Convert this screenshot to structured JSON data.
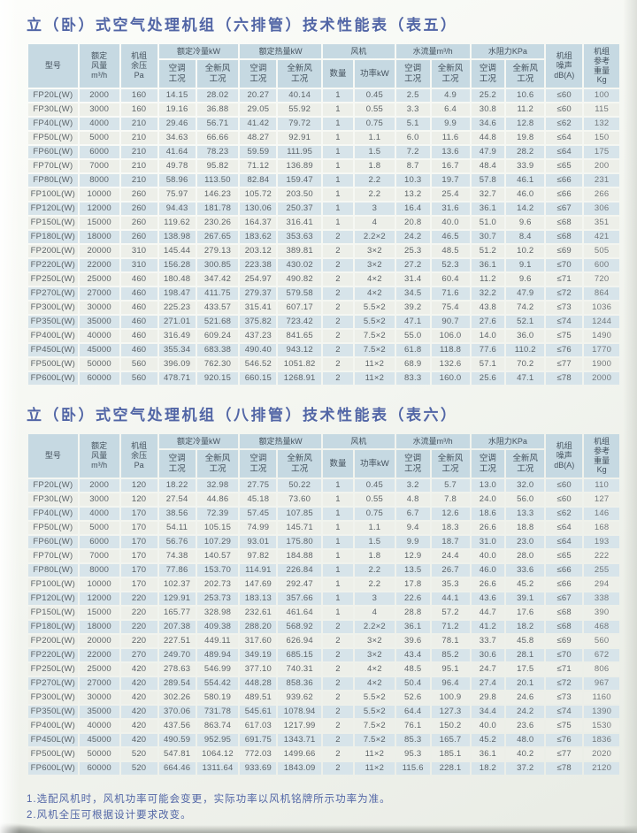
{
  "colors": {
    "title_text": "#5266a6",
    "header_bg": "#c6d9e2",
    "row_odd_bg": "#d7e4ea",
    "row_even_bg": "#edefe9",
    "cell_text": "#5d6468",
    "note_text": "#5266a6"
  },
  "tables": [
    {
      "title": "立（卧）式空气处理机组（六排管）技术性能表（表五）",
      "header": {
        "model": "型号",
        "airflow": "额定\n风量\nm³/h",
        "pressure": "机组\n余压\nPa",
        "cooling_group": "额定冷量kW",
        "heating_group": "额定热量kW",
        "fan_group": "风机",
        "waterflow_group": "水流量m³/h",
        "waterres_group": "水阻力KPa",
        "ac_cond": "空调\n工况",
        "fresh_cond": "全新风\n工况",
        "fan_qty": "数量",
        "fan_power": "功率kW",
        "noise": "机组\n噪声\ndB(A)",
        "weight": "机组\n参考\n重量\nKg"
      },
      "rows": [
        [
          "FP20L(W)",
          "2000",
          "160",
          "14.15",
          "28.02",
          "20.27",
          "40.14",
          "1",
          "0.45",
          "2.5",
          "4.9",
          "25.2",
          "10.6",
          "≤60",
          "100"
        ],
        [
          "FP30L(W)",
          "3000",
          "160",
          "19.16",
          "36.88",
          "29.05",
          "55.92",
          "1",
          "0.55",
          "3.3",
          "6.4",
          "30.8",
          "11.2",
          "≤60",
          "115"
        ],
        [
          "FP40L(W)",
          "4000",
          "210",
          "29.46",
          "56.71",
          "41.42",
          "79.72",
          "1",
          "0.75",
          "5.1",
          "9.9",
          "34.6",
          "12.8",
          "≤62",
          "132"
        ],
        [
          "FP50L(W)",
          "5000",
          "210",
          "34.63",
          "66.66",
          "48.27",
          "92.91",
          "1",
          "1.1",
          "6.0",
          "11.6",
          "44.8",
          "19.8",
          "≤64",
          "150"
        ],
        [
          "FP60L(W)",
          "6000",
          "210",
          "41.64",
          "78.23",
          "59.59",
          "111.95",
          "1",
          "1.5",
          "7.2",
          "13.6",
          "47.9",
          "28.2",
          "≤64",
          "175"
        ],
        [
          "FP70L(W)",
          "7000",
          "210",
          "49.78",
          "95.82",
          "71.12",
          "136.89",
          "1",
          "1.8",
          "8.7",
          "16.7",
          "48.4",
          "33.9",
          "≤65",
          "200"
        ],
        [
          "FP80L(W)",
          "8000",
          "210",
          "58.96",
          "113.50",
          "82.84",
          "159.47",
          "1",
          "2.2",
          "10.3",
          "19.7",
          "57.8",
          "46.1",
          "≤66",
          "231"
        ],
        [
          "FP100L(W)",
          "10000",
          "260",
          "75.97",
          "146.23",
          "105.72",
          "203.50",
          "1",
          "2.2",
          "13.2",
          "25.4",
          "32.7",
          "46.0",
          "≤66",
          "266"
        ],
        [
          "FP120L(W)",
          "12000",
          "260",
          "94.43",
          "181.78",
          "130.06",
          "250.37",
          "1",
          "3",
          "16.4",
          "31.6",
          "36.1",
          "14.2",
          "≤67",
          "306"
        ],
        [
          "FP150L(W)",
          "15000",
          "260",
          "119.62",
          "230.26",
          "164.37",
          "316.41",
          "1",
          "4",
          "20.8",
          "40.0",
          "51.0",
          "9.6",
          "≤68",
          "351"
        ],
        [
          "FP180L(W)",
          "18000",
          "260",
          "138.98",
          "267.65",
          "183.62",
          "353.63",
          "2",
          "2.2×2",
          "24.2",
          "46.5",
          "30.7",
          "8.4",
          "≤68",
          "421"
        ],
        [
          "FP200L(W)",
          "20000",
          "310",
          "145.44",
          "279.13",
          "203.12",
          "389.81",
          "2",
          "3×2",
          "25.3",
          "48.5",
          "51.2",
          "10.2",
          "≤69",
          "505"
        ],
        [
          "FP220L(W)",
          "22000",
          "310",
          "156.28",
          "300.85",
          "223.38",
          "430.02",
          "2",
          "3×2",
          "27.2",
          "52.3",
          "36.1",
          "9.1",
          "≤70",
          "600"
        ],
        [
          "FP250L(W)",
          "25000",
          "460",
          "180.48",
          "347.42",
          "254.97",
          "490.82",
          "2",
          "4×2",
          "31.4",
          "60.4",
          "11.2",
          "9.6",
          "≤71",
          "720"
        ],
        [
          "FP270L(W)",
          "27000",
          "460",
          "198.47",
          "411.75",
          "279.37",
          "579.58",
          "2",
          "4×2",
          "34.5",
          "71.6",
          "32.2",
          "47.9",
          "≤72",
          "864"
        ],
        [
          "FP300L(W)",
          "30000",
          "460",
          "225.23",
          "433.57",
          "315.41",
          "607.17",
          "2",
          "5.5×2",
          "39.2",
          "75.4",
          "43.8",
          "74.2",
          "≤73",
          "1036"
        ],
        [
          "FP350L(W)",
          "35000",
          "460",
          "271.01",
          "521.68",
          "375.82",
          "723.42",
          "2",
          "5.5×2",
          "47.1",
          "90.7",
          "27.6",
          "52.1",
          "≤74",
          "1244"
        ],
        [
          "FP400L(W)",
          "40000",
          "460",
          "316.49",
          "609.24",
          "437.23",
          "841.65",
          "2",
          "7.5×2",
          "55.0",
          "106.0",
          "14.0",
          "36.0",
          "≤75",
          "1490"
        ],
        [
          "FP450L(W)",
          "45000",
          "460",
          "355.34",
          "683.38",
          "490.40",
          "943.12",
          "2",
          "7.5×2",
          "61.8",
          "118.8",
          "77.6",
          "110.2",
          "≤76",
          "1770"
        ],
        [
          "FP500L(W)",
          "50000",
          "560",
          "396.09",
          "762.30",
          "546.52",
          "1051.82",
          "2",
          "11×2",
          "68.9",
          "132.6",
          "57.1",
          "70.2",
          "≤77",
          "1900"
        ],
        [
          "FP600L(W)",
          "60000",
          "560",
          "478.71",
          "920.15",
          "660.15",
          "1268.91",
          "2",
          "11×2",
          "83.3",
          "160.0",
          "25.6",
          "47.1",
          "≤78",
          "2000"
        ]
      ]
    },
    {
      "title": "立（卧）式空气处理机组（八排管）技术性能表（表六）",
      "header": {
        "model": "型号",
        "airflow": "额定\n风量\nm³/h",
        "pressure": "机组\n余压\nPa",
        "cooling_group": "额定冷量kW",
        "heating_group": "额定热量kW",
        "fan_group": "风机",
        "waterflow_group": "水流量m³/h",
        "waterres_group": "水阻力KPa",
        "ac_cond": "空调\n工况",
        "fresh_cond": "全新风\n工况",
        "fan_qty": "数量",
        "fan_power": "功率kW",
        "noise": "机组\n噪声\ndB(A)",
        "weight": "机组\n参考\n重量\nKg"
      },
      "rows": [
        [
          "FP20L(W)",
          "2000",
          "120",
          "18.22",
          "32.98",
          "27.75",
          "50.22",
          "1",
          "0.45",
          "3.2",
          "5.7",
          "13.0",
          "32.0",
          "≤60",
          "110"
        ],
        [
          "FP30L(W)",
          "3000",
          "120",
          "27.54",
          "44.86",
          "45.18",
          "73.60",
          "1",
          "0.55",
          "4.8",
          "7.8",
          "24.0",
          "56.0",
          "≤60",
          "127"
        ],
        [
          "FP40L(W)",
          "4000",
          "170",
          "38.56",
          "72.39",
          "57.45",
          "107.85",
          "1",
          "0.75",
          "6.7",
          "12.6",
          "18.6",
          "13.3",
          "≤62",
          "146"
        ],
        [
          "FP50L(W)",
          "5000",
          "170",
          "54.11",
          "105.15",
          "74.99",
          "145.71",
          "1",
          "1.1",
          "9.4",
          "18.3",
          "26.6",
          "18.8",
          "≤64",
          "168"
        ],
        [
          "FP60L(W)",
          "6000",
          "170",
          "56.76",
          "107.29",
          "93.01",
          "175.80",
          "1",
          "1.5",
          "9.9",
          "18.7",
          "31.0",
          "23.0",
          "≤64",
          "193"
        ],
        [
          "FP70L(W)",
          "7000",
          "170",
          "74.38",
          "140.57",
          "97.82",
          "184.88",
          "1",
          "1.8",
          "12.9",
          "24.4",
          "40.0",
          "28.0",
          "≤65",
          "222"
        ],
        [
          "FP80L(W)",
          "8000",
          "170",
          "77.86",
          "153.70",
          "114.91",
          "226.84",
          "1",
          "2.2",
          "13.5",
          "26.7",
          "46.0",
          "33.6",
          "≤66",
          "255"
        ],
        [
          "FP100L(W)",
          "10000",
          "170",
          "102.37",
          "202.73",
          "147.69",
          "292.47",
          "1",
          "2.2",
          "17.8",
          "35.3",
          "26.6",
          "45.2",
          "≤66",
          "294"
        ],
        [
          "FP120L(W)",
          "12000",
          "220",
          "129.91",
          "253.73",
          "183.13",
          "357.66",
          "1",
          "3",
          "22.6",
          "44.1",
          "43.6",
          "39.1",
          "≤67",
          "338"
        ],
        [
          "FP150L(W)",
          "15000",
          "220",
          "165.77",
          "328.98",
          "232.61",
          "461.64",
          "1",
          "4",
          "28.8",
          "57.2",
          "44.7",
          "17.6",
          "≤68",
          "390"
        ],
        [
          "FP180L(W)",
          "18000",
          "220",
          "207.38",
          "409.38",
          "288.20",
          "568.92",
          "2",
          "2.2×2",
          "36.1",
          "71.2",
          "41.2",
          "18.2",
          "≤68",
          "468"
        ],
        [
          "FP200L(W)",
          "20000",
          "220",
          "227.51",
          "449.11",
          "317.60",
          "626.94",
          "2",
          "3×2",
          "39.6",
          "78.1",
          "33.7",
          "45.8",
          "≤69",
          "560"
        ],
        [
          "FP220L(W)",
          "22000",
          "270",
          "249.70",
          "489.94",
          "349.19",
          "685.15",
          "2",
          "3×2",
          "43.4",
          "85.2",
          "30.6",
          "28.1",
          "≤70",
          "672"
        ],
        [
          "FP250L(W)",
          "25000",
          "420",
          "278.63",
          "546.99",
          "377.10",
          "740.31",
          "2",
          "4×2",
          "48.5",
          "95.1",
          "24.7",
          "17.5",
          "≤71",
          "806"
        ],
        [
          "FP270L(W)",
          "27000",
          "420",
          "289.54",
          "554.42",
          "448.28",
          "858.36",
          "2",
          "4×2",
          "50.4",
          "96.4",
          "27.4",
          "20.1",
          "≤72",
          "967"
        ],
        [
          "FP300L(W)",
          "30000",
          "420",
          "302.26",
          "580.19",
          "489.51",
          "939.62",
          "2",
          "5.5×2",
          "52.6",
          "100.9",
          "29.8",
          "24.6",
          "≤73",
          "1160"
        ],
        [
          "FP350L(W)",
          "35000",
          "420",
          "370.06",
          "731.78",
          "545.61",
          "1078.94",
          "2",
          "5.5×2",
          "64.4",
          "127.3",
          "34.4",
          "24.2",
          "≤74",
          "1390"
        ],
        [
          "FP400L(W)",
          "40000",
          "420",
          "437.56",
          "863.74",
          "617.03",
          "1217.99",
          "2",
          "7.5×2",
          "76.1",
          "150.2",
          "40.0",
          "23.6",
          "≤75",
          "1530"
        ],
        [
          "FP450L(W)",
          "45000",
          "420",
          "490.59",
          "952.95",
          "691.75",
          "1343.71",
          "2",
          "7.5×2",
          "85.3",
          "165.7",
          "45.2",
          "48.0",
          "≤76",
          "1836"
        ],
        [
          "FP500L(W)",
          "50000",
          "520",
          "547.81",
          "1064.12",
          "772.03",
          "1499.66",
          "2",
          "11×2",
          "95.3",
          "185.1",
          "36.1",
          "40.2",
          "≤77",
          "2020"
        ],
        [
          "FP600L(W)",
          "60000",
          "520",
          "664.46",
          "1311.64",
          "933.69",
          "1843.09",
          "2",
          "11×2",
          "115.6",
          "228.1",
          "18.2",
          "37.2",
          "≤78",
          "2120"
        ]
      ]
    }
  ],
  "notes": [
    "1.选配风机时，风机功率可能会变更，实际功率以风机铭牌所示功率为准。",
    "2.风机全压可根据设计要求改变。"
  ]
}
